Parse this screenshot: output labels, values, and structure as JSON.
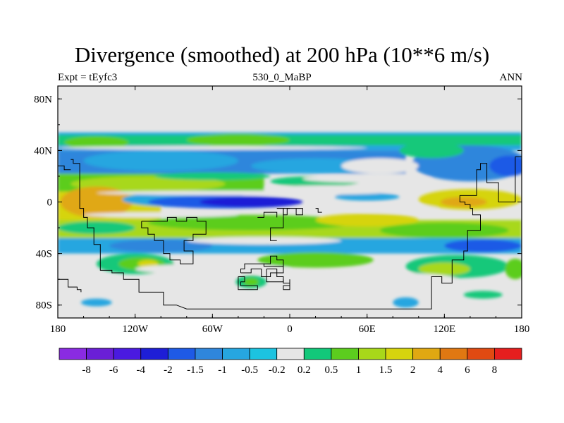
{
  "header": {
    "title": "Divergence (smoothed) at 200 hPa (10**6 m/s)",
    "left_label": "Expt = tEyfc3",
    "center_label": "530_0_MaBP",
    "right_label": "ANN"
  },
  "axes": {
    "x_ticks": [
      {
        "value": -180,
        "label": "180"
      },
      {
        "value": -120,
        "label": "120W"
      },
      {
        "value": -60,
        "label": "60W"
      },
      {
        "value": 0,
        "label": "0"
      },
      {
        "value": 60,
        "label": "60E"
      },
      {
        "value": 120,
        "label": "120E"
      },
      {
        "value": 180,
        "label": "180"
      }
    ],
    "y_ticks": [
      {
        "value": 80,
        "label": "80N"
      },
      {
        "value": 40,
        "label": "40N"
      },
      {
        "value": 0,
        "label": "0"
      },
      {
        "value": -40,
        "label": "40S"
      },
      {
        "value": -80,
        "label": "80S"
      }
    ],
    "lon_range": [
      -180,
      180
    ],
    "lat_range": [
      -90,
      90
    ]
  },
  "colorbar": {
    "colors": [
      "#8a2be2",
      "#6a1fd6",
      "#4a1ae0",
      "#1e1ed6",
      "#1e5ae6",
      "#2f86dc",
      "#26a6e0",
      "#1cc3e0",
      "#e6e6e6",
      "#12c87a",
      "#5ccd1e",
      "#a8d81a",
      "#d6d40e",
      "#e0a812",
      "#e07812",
      "#e04a12",
      "#e61e1e"
    ],
    "labels": [
      "-8",
      "-6",
      "-4",
      "-2",
      "-1.5",
      "-1",
      "-0.5",
      "-0.2",
      "0.2",
      "0.5",
      "1",
      "1.5",
      "2",
      "4",
      "6",
      "8"
    ]
  },
  "map": {
    "background": "#e6e6e6",
    "bands": [
      {
        "type": "rect",
        "lon0": -180,
        "lat0": 54,
        "lon1": 180,
        "lat1": 40,
        "color": "#26a6e0"
      },
      {
        "type": "rect",
        "lon0": -180,
        "lat0": 52,
        "lon1": 180,
        "lat1": 44,
        "color": "#12c87a"
      },
      {
        "type": "ellipse",
        "lon": -150,
        "lat": 46,
        "rlon": 25,
        "rlat": 5,
        "color": "#5ccd1e"
      },
      {
        "type": "ellipse",
        "lon": -40,
        "lat": 48,
        "rlon": 40,
        "rlat": 5,
        "color": "#5ccd1e"
      },
      {
        "type": "rect",
        "lon0": -180,
        "lat0": 40,
        "lon1": 90,
        "lat1": 22,
        "color": "#2f86dc"
      },
      {
        "type": "ellipse",
        "lon": -100,
        "lat": 32,
        "rlon": 60,
        "rlat": 8,
        "color": "#26a6e0"
      },
      {
        "type": "ellipse",
        "lon": 20,
        "lat": 28,
        "rlon": 50,
        "rlat": 6,
        "color": "#26a6e0"
      },
      {
        "type": "ellipse",
        "lon": 140,
        "lat": 30,
        "rlon": 45,
        "rlat": 14,
        "color": "#2f86dc"
      },
      {
        "type": "ellipse",
        "lon": 170,
        "lat": 28,
        "rlon": 15,
        "rlat": 8,
        "color": "#1e5ae6"
      },
      {
        "type": "ellipse",
        "lon": 110,
        "lat": 40,
        "rlon": 25,
        "rlat": 6,
        "color": "#12c87a"
      },
      {
        "type": "rect",
        "lon0": -180,
        "lat0": 22,
        "lon1": -20,
        "lat1": 8,
        "color": "#5ccd1e"
      },
      {
        "type": "ellipse",
        "lon": -110,
        "lat": 14,
        "rlon": 60,
        "rlat": 6,
        "color": "#a8d81a"
      },
      {
        "type": "ellipse",
        "lon": -60,
        "lat": 20,
        "rlon": 45,
        "rlat": 3,
        "color": "#12c87a"
      },
      {
        "type": "ellipse",
        "lon": 20,
        "lat": 16,
        "rlon": 35,
        "rlat": 4,
        "color": "#12c87a"
      },
      {
        "type": "rect",
        "lon0": -180,
        "lat0": 8,
        "lon1": -100,
        "lat1": -14,
        "color": "#d6d40e"
      },
      {
        "type": "ellipse",
        "lon": -150,
        "lat": 0,
        "rlon": 28,
        "rlat": 12,
        "color": "#e0a812"
      },
      {
        "type": "ellipse",
        "lon": -80,
        "lat": 2,
        "rlon": 50,
        "rlat": 6,
        "color": "#26a6e0"
      },
      {
        "type": "ellipse",
        "lon": -50,
        "lat": 0,
        "rlon": 60,
        "rlat": 5,
        "color": "#1e5ae6"
      },
      {
        "type": "ellipse",
        "lon": -30,
        "lat": 0,
        "rlon": 40,
        "rlat": 4,
        "color": "#1e1ed6"
      },
      {
        "type": "ellipse",
        "lon": 60,
        "lat": 4,
        "rlon": 25,
        "rlat": 3,
        "color": "#26a6e0"
      },
      {
        "type": "ellipse",
        "lon": 140,
        "lat": 2,
        "rlon": 40,
        "rlat": 8,
        "color": "#d6d40e"
      },
      {
        "type": "ellipse",
        "lon": 135,
        "lat": 0,
        "rlon": 18,
        "rlat": 4,
        "color": "#e0a812"
      },
      {
        "type": "rect",
        "lon0": -180,
        "lat0": -14,
        "lon1": 180,
        "lat1": -28,
        "color": "#a8d81a"
      },
      {
        "type": "ellipse",
        "lon": -30,
        "lat": -16,
        "rlon": 80,
        "rlat": 6,
        "color": "#5ccd1e"
      },
      {
        "type": "ellipse",
        "lon": 60,
        "lat": -14,
        "rlon": 40,
        "rlat": 5,
        "color": "#d6d40e"
      },
      {
        "type": "ellipse",
        "lon": -150,
        "lat": -20,
        "rlon": 30,
        "rlat": 5,
        "color": "#12c87a"
      },
      {
        "type": "ellipse",
        "lon": 120,
        "lat": -22,
        "rlon": 50,
        "rlat": 6,
        "color": "#5ccd1e"
      },
      {
        "type": "rect",
        "lon0": -180,
        "lat0": -28,
        "lon1": 180,
        "lat1": -40,
        "color": "#26a6e0"
      },
      {
        "type": "ellipse",
        "lon": -100,
        "lat": -34,
        "rlon": 40,
        "rlat": 5,
        "color": "#2f86dc"
      },
      {
        "type": "ellipse",
        "lon": 150,
        "lat": -34,
        "rlon": 30,
        "rlat": 5,
        "color": "#1e5ae6"
      },
      {
        "type": "ellipse",
        "lon": -120,
        "lat": -48,
        "rlon": 30,
        "rlat": 8,
        "color": "#12c87a"
      },
      {
        "type": "ellipse",
        "lon": -115,
        "lat": -48,
        "rlon": 18,
        "rlat": 5,
        "color": "#5ccd1e"
      },
      {
        "type": "ellipse",
        "lon": -110,
        "lat": -48,
        "rlon": 8,
        "rlat": 3,
        "color": "#d6d40e"
      },
      {
        "type": "ellipse",
        "lon": 20,
        "lat": -45,
        "rlon": 45,
        "rlat": 6,
        "color": "#5ccd1e"
      },
      {
        "type": "ellipse",
        "lon": 130,
        "lat": -50,
        "rlon": 40,
        "rlat": 9,
        "color": "#12c87a"
      },
      {
        "type": "ellipse",
        "lon": 120,
        "lat": -52,
        "rlon": 20,
        "rlat": 5,
        "color": "#a8d81a"
      },
      {
        "type": "ellipse",
        "lon": 175,
        "lat": -52,
        "rlon": 8,
        "rlat": 8,
        "color": "#5ccd1e"
      },
      {
        "type": "ellipse",
        "lon": -30,
        "lat": -62,
        "rlon": 12,
        "rlat": 5,
        "color": "#12c87a"
      },
      {
        "type": "ellipse",
        "lon": -30,
        "lat": -62,
        "rlon": 6,
        "rlat": 3,
        "color": "#5ccd1e"
      },
      {
        "type": "ellipse",
        "lon": -150,
        "lat": -78,
        "rlon": 12,
        "rlat": 3,
        "color": "#26a6e0"
      },
      {
        "type": "ellipse",
        "lon": 90,
        "lat": -78,
        "rlon": 10,
        "rlat": 4,
        "color": "#26a6e0"
      },
      {
        "type": "ellipse",
        "lon": 150,
        "lat": -72,
        "rlon": 15,
        "rlat": 3,
        "color": "#12c87a"
      }
    ],
    "gaps": [
      {
        "type": "ellipse",
        "lon": -60,
        "lat": 42,
        "rlon": 120,
        "rlat": 1.5
      },
      {
        "type": "ellipse",
        "lon": -40,
        "lat": 7,
        "rlon": 110,
        "rlat": 1.8
      },
      {
        "type": "ellipse",
        "lon": 40,
        "lat": 10,
        "rlon": 60,
        "rlat": 3
      },
      {
        "type": "ellipse",
        "lon": 60,
        "lat": 18,
        "rlon": 50,
        "rlat": 3
      },
      {
        "type": "ellipse",
        "lon": 70,
        "lat": 28,
        "rlon": 30,
        "rlat": 6
      },
      {
        "type": "ellipse",
        "lon": 80,
        "lat": -5,
        "rlon": 35,
        "rlat": 3
      },
      {
        "type": "ellipse",
        "lon": -100,
        "lat": -10,
        "rlon": 60,
        "rlat": 2
      },
      {
        "type": "ellipse",
        "lon": -20,
        "lat": -30,
        "rlon": 60,
        "rlat": 3
      },
      {
        "type": "ellipse",
        "lon": -60,
        "lat": -52,
        "rlon": 60,
        "rlat": 4
      },
      {
        "type": "ellipse",
        "lon": 80,
        "lat": -60,
        "rlon": 50,
        "rlat": 5
      }
    ],
    "continents": [
      [
        [
          -170,
          33
        ],
        [
          -168,
          33
        ],
        [
          -168,
          30
        ],
        [
          -163,
          30
        ],
        [
          -163,
          -5
        ],
        [
          -160,
          -5
        ],
        [
          -160,
          -12
        ],
        [
          -157,
          -12
        ],
        [
          -157,
          -20
        ],
        [
          -152,
          -20
        ],
        [
          -152,
          -33
        ],
        [
          -147,
          -33
        ],
        [
          -147,
          -53
        ],
        [
          -138,
          -53
        ],
        [
          -138,
          -55
        ],
        [
          -129,
          -55
        ],
        [
          -129,
          -60
        ],
        [
          -117,
          -60
        ],
        [
          -117,
          -70
        ],
        [
          -98,
          -70
        ],
        [
          -98,
          -80
        ],
        [
          -88,
          -80
        ],
        [
          -80,
          -83
        ],
        [
          106,
          -83
        ],
        [
          110,
          -83
        ],
        [
          110,
          -58
        ],
        [
          118,
          -58
        ],
        [
          118,
          -63
        ],
        [
          126,
          -63
        ],
        [
          126,
          -45
        ],
        [
          135,
          -45
        ],
        [
          135,
          -38
        ],
        [
          138,
          -38
        ],
        [
          138,
          -22
        ],
        [
          148,
          -22
        ],
        [
          148,
          -10
        ],
        [
          142,
          -10
        ],
        [
          142,
          -5
        ],
        [
          140,
          -5
        ],
        [
          140,
          -2
        ],
        [
          136,
          -2
        ],
        [
          136,
          0
        ],
        [
          132,
          0
        ],
        [
          132,
          5
        ],
        [
          145,
          5
        ],
        [
          145,
          25
        ],
        [
          148,
          25
        ],
        [
          148,
          30
        ],
        [
          153,
          30
        ],
        [
          153,
          15
        ],
        [
          162,
          15
        ],
        [
          162,
          0
        ],
        [
          175,
          0
        ],
        [
          175,
          35
        ],
        [
          180,
          35
        ]
      ],
      [
        [
          -180,
          28
        ],
        [
          -175,
          28
        ],
        [
          -175,
          25
        ],
        [
          -170,
          25
        ]
      ],
      [
        [
          -115,
          -15
        ],
        [
          -115,
          -20
        ],
        [
          -110,
          -20
        ],
        [
          -110,
          -25
        ],
        [
          -105,
          -25
        ],
        [
          -105,
          -30
        ],
        [
          -98,
          -30
        ],
        [
          -98,
          -40
        ],
        [
          -93,
          -40
        ],
        [
          -93,
          -45
        ],
        [
          -85,
          -45
        ],
        [
          -85,
          -48
        ],
        [
          -75,
          -48
        ],
        [
          -75,
          -38
        ],
        [
          -82,
          -38
        ],
        [
          -82,
          -30
        ],
        [
          -75,
          -30
        ],
        [
          -75,
          -25
        ],
        [
          -65,
          -25
        ],
        [
          -65,
          -15
        ],
        [
          -72,
          -15
        ],
        [
          -72,
          -12
        ],
        [
          -80,
          -12
        ],
        [
          -80,
          -15
        ],
        [
          -88,
          -15
        ],
        [
          -88,
          -12
        ],
        [
          -95,
          -12
        ],
        [
          -95,
          -15
        ],
        [
          -115,
          -15
        ]
      ],
      [
        [
          -38,
          -55
        ],
        [
          -30,
          -55
        ],
        [
          -30,
          -52
        ],
        [
          -22,
          -52
        ],
        [
          -22,
          -58
        ],
        [
          -15,
          -58
        ],
        [
          -15,
          -55
        ],
        [
          -5,
          -55
        ],
        [
          -5,
          -50
        ],
        [
          -20,
          -50
        ],
        [
          -20,
          -48
        ],
        [
          -35,
          -48
        ],
        [
          -35,
          -52
        ],
        [
          -38,
          -52
        ],
        [
          -38,
          -55
        ]
      ],
      [
        [
          -18,
          -52
        ],
        [
          -10,
          -52
        ],
        [
          -10,
          -58
        ],
        [
          -5,
          -58
        ],
        [
          -5,
          -62
        ],
        [
          -18,
          -62
        ],
        [
          -18,
          -52
        ]
      ],
      [
        [
          -40,
          -58
        ],
        [
          -35,
          -58
        ],
        [
          -35,
          -62
        ],
        [
          -38,
          -62
        ],
        [
          -38,
          -65
        ],
        [
          -25,
          -65
        ],
        [
          -25,
          -68
        ],
        [
          -40,
          -68
        ],
        [
          -40,
          -58
        ]
      ],
      [
        [
          -20,
          -48
        ],
        [
          -15,
          -48
        ],
        [
          -15,
          -42
        ],
        [
          -10,
          -42
        ],
        [
          -10,
          -45
        ],
        [
          -5,
          -45
        ],
        [
          -5,
          -50
        ]
      ],
      [
        [
          -10,
          -5
        ],
        [
          -5,
          -5
        ],
        [
          -5,
          -10
        ],
        [
          -2,
          -10
        ],
        [
          -2,
          -5
        ],
        [
          5,
          -5
        ],
        [
          5,
          -10
        ],
        [
          10,
          -10
        ],
        [
          10,
          -5
        ],
        [
          5,
          -5
        ]
      ],
      [
        [
          0,
          -5
        ],
        [
          -5,
          -5
        ],
        [
          -5,
          -20
        ],
        [
          -15,
          -20
        ],
        [
          -15,
          -30
        ],
        [
          -10,
          -30
        ]
      ],
      [
        [
          20,
          -5
        ],
        [
          22,
          -5
        ],
        [
          22,
          -8
        ],
        [
          25,
          -8
        ]
      ],
      [
        [
          -25,
          -12
        ],
        [
          -20,
          -12
        ],
        [
          -20,
          -8
        ],
        [
          -10,
          -8
        ],
        [
          -10,
          -12
        ]
      ],
      [
        [
          -180,
          -60
        ],
        [
          -172,
          -60
        ],
        [
          -172,
          -66
        ],
        [
          -165,
          -66
        ],
        [
          -165,
          -68
        ],
        [
          -162,
          -68
        ],
        [
          -162,
          -70
        ]
      ],
      [
        [
          0,
          -60
        ],
        [
          0,
          -65
        ],
        [
          -5,
          -65
        ],
        [
          -5,
          -68
        ],
        [
          0,
          -68
        ],
        [
          0,
          -63
        ],
        [
          -5,
          -63
        ],
        [
          -5,
          -60
        ]
      ]
    ]
  }
}
